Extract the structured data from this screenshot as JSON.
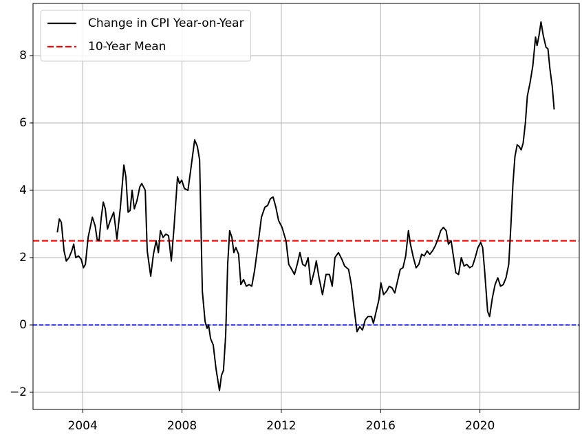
{
  "chart_data": {
    "type": "line",
    "x": [
      2002.98,
      2003.06,
      2003.14,
      2003.25,
      2003.34,
      2003.45,
      2003.56,
      2003.64,
      2003.72,
      2003.83,
      2003.94,
      2004.03,
      2004.11,
      2004.22,
      2004.39,
      2004.5,
      2004.58,
      2004.66,
      2004.75,
      2004.83,
      2004.91,
      2005.0,
      2005.11,
      2005.25,
      2005.38,
      2005.52,
      2005.66,
      2005.74,
      2005.83,
      2005.91,
      2005.99,
      2006.08,
      2006.19,
      2006.3,
      2006.38,
      2006.52,
      2006.6,
      2006.74,
      2006.85,
      2006.96,
      2007.05,
      2007.13,
      2007.24,
      2007.35,
      2007.46,
      2007.57,
      2007.68,
      2007.82,
      2007.9,
      2007.99,
      2008.1,
      2008.24,
      2008.35,
      2008.51,
      2008.62,
      2008.71,
      2008.82,
      2008.93,
      2009.01,
      2009.07,
      2009.15,
      2009.26,
      2009.37,
      2009.51,
      2009.59,
      2009.67,
      2009.76,
      2009.84,
      2009.92,
      2010.01,
      2010.09,
      2010.17,
      2010.28,
      2010.37,
      2010.48,
      2010.59,
      2010.7,
      2010.81,
      2010.92,
      2011.03,
      2011.2,
      2011.34,
      2011.45,
      2011.56,
      2011.67,
      2011.78,
      2011.89,
      2012.03,
      2012.19,
      2012.3,
      2012.42,
      2012.53,
      2012.64,
      2012.75,
      2012.86,
      2012.97,
      2013.08,
      2013.19,
      2013.33,
      2013.41,
      2013.52,
      2013.66,
      2013.8,
      2013.94,
      2014.05,
      2014.16,
      2014.3,
      2014.44,
      2014.55,
      2014.71,
      2014.82,
      2014.93,
      2015.05,
      2015.16,
      2015.27,
      2015.38,
      2015.49,
      2015.63,
      2015.71,
      2015.82,
      2015.93,
      2016.01,
      2016.12,
      2016.24,
      2016.35,
      2016.46,
      2016.57,
      2016.68,
      2016.79,
      2016.9,
      2017.01,
      2017.12,
      2017.2,
      2017.32,
      2017.43,
      2017.54,
      2017.65,
      2017.76,
      2017.87,
      2017.98,
      2018.09,
      2018.2,
      2018.31,
      2018.42,
      2018.53,
      2018.64,
      2018.73,
      2018.84,
      2018.92,
      2019.03,
      2019.14,
      2019.25,
      2019.36,
      2019.47,
      2019.59,
      2019.7,
      2019.81,
      2019.92,
      2020.03,
      2020.11,
      2020.19,
      2020.31,
      2020.39,
      2020.5,
      2020.61,
      2020.72,
      2020.83,
      2020.94,
      2021.05,
      2021.16,
      2021.25,
      2021.33,
      2021.41,
      2021.5,
      2021.58,
      2021.66,
      2021.74,
      2021.83,
      2021.91,
      2022.02,
      2022.13,
      2022.24,
      2022.3,
      2022.38,
      2022.46,
      2022.55,
      2022.66,
      2022.74,
      2022.82,
      2022.91,
      2022.99
    ],
    "series": [
      {
        "name": "Change in CPI Year-on-Year",
        "color": "#000000",
        "values": [
          2.75,
          3.15,
          3.05,
          2.2,
          1.9,
          2.0,
          2.2,
          2.4,
          2.0,
          2.05,
          1.95,
          1.7,
          1.8,
          2.6,
          3.2,
          2.95,
          2.55,
          2.5,
          3.2,
          3.65,
          3.45,
          2.85,
          3.1,
          3.35,
          2.55,
          3.5,
          4.75,
          4.4,
          3.35,
          3.4,
          4.0,
          3.45,
          3.7,
          4.1,
          4.2,
          4.0,
          2.2,
          1.45,
          2.1,
          2.5,
          2.15,
          2.8,
          2.6,
          2.7,
          2.65,
          1.9,
          2.9,
          4.4,
          4.2,
          4.3,
          4.05,
          4.0,
          4.6,
          5.5,
          5.3,
          4.9,
          1.0,
          0.1,
          -0.1,
          0.0,
          -0.4,
          -0.6,
          -1.3,
          -1.95,
          -1.5,
          -1.35,
          -0.3,
          1.8,
          2.8,
          2.6,
          2.15,
          2.3,
          2.1,
          1.2,
          1.35,
          1.15,
          1.2,
          1.15,
          1.6,
          2.2,
          3.2,
          3.5,
          3.55,
          3.75,
          3.8,
          3.5,
          3.1,
          2.9,
          2.5,
          1.8,
          1.65,
          1.5,
          1.8,
          2.15,
          1.8,
          1.75,
          2.0,
          1.2,
          1.6,
          1.9,
          1.4,
          0.9,
          1.5,
          1.5,
          1.15,
          2.0,
          2.15,
          1.95,
          1.75,
          1.65,
          1.2,
          0.5,
          -0.2,
          -0.05,
          -0.15,
          0.15,
          0.25,
          0.25,
          0.05,
          0.4,
          0.75,
          1.25,
          0.9,
          1.0,
          1.15,
          1.1,
          0.95,
          1.3,
          1.65,
          1.7,
          2.05,
          2.8,
          2.4,
          2.0,
          1.7,
          1.8,
          2.1,
          2.05,
          2.2,
          2.1,
          2.2,
          2.35,
          2.55,
          2.8,
          2.9,
          2.8,
          2.4,
          2.5,
          2.1,
          1.55,
          1.5,
          2.0,
          1.75,
          1.8,
          1.7,
          1.75,
          2.0,
          2.3,
          2.45,
          2.3,
          1.6,
          0.4,
          0.25,
          0.8,
          1.2,
          1.4,
          1.15,
          1.2,
          1.4,
          1.8,
          3.0,
          4.2,
          5.0,
          5.35,
          5.3,
          5.2,
          5.4,
          6.0,
          6.8,
          7.2,
          7.7,
          8.55,
          8.3,
          8.6,
          9.0,
          8.6,
          8.25,
          8.2,
          7.6,
          7.1,
          6.4
        ]
      }
    ],
    "hlines": [
      {
        "name": "10-Year Mean",
        "value": 2.5,
        "color": "#ff0000"
      },
      {
        "value": 0,
        "color": "#0000ff"
      }
    ],
    "xlim": [
      2002.0,
      2024.0
    ],
    "xticks": [
      2004,
      2008,
      2012,
      2016,
      2020
    ],
    "ylim": [
      -2.51,
      9.55
    ],
    "yticks": [
      {
        "value": -2,
        "label": "−2"
      },
      0,
      2,
      4,
      6,
      8
    ],
    "grid": true,
    "legend": "upper left"
  }
}
